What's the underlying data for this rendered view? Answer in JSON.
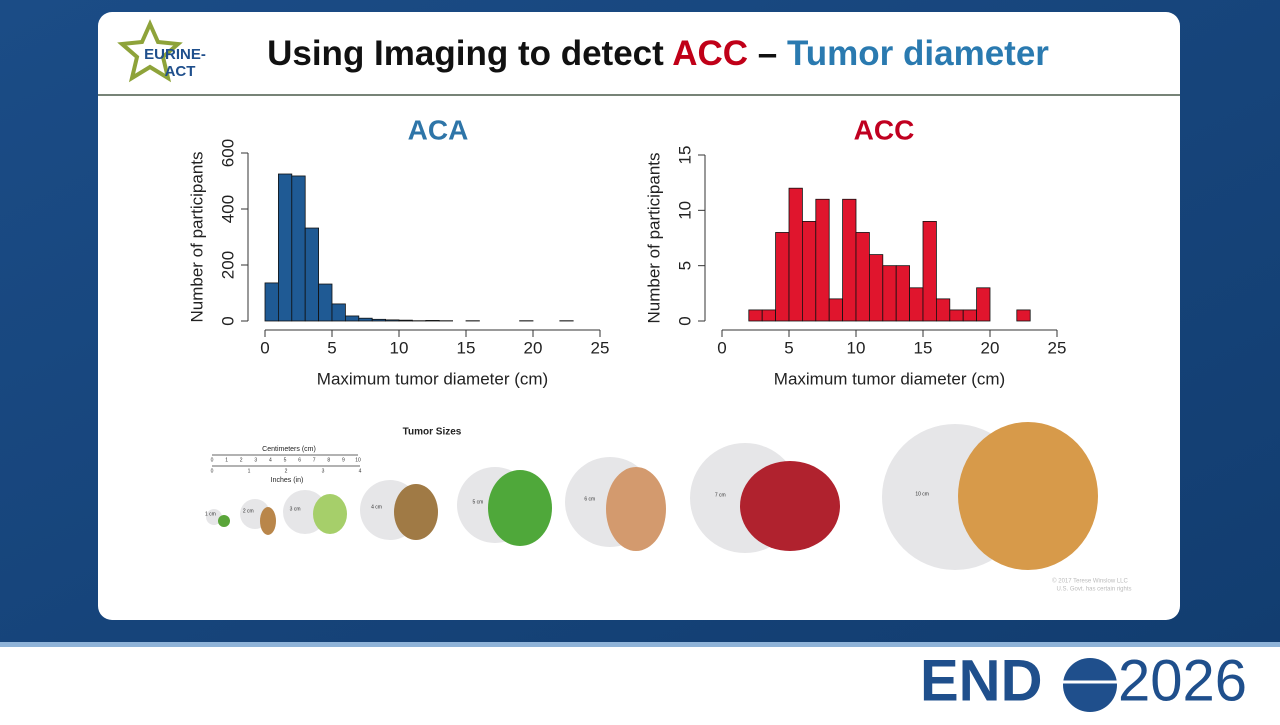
{
  "logo": {
    "line1": "EURINE-",
    "line2": "ACT"
  },
  "title": {
    "prefix": "Using Imaging to detect",
    "acc": "ACC",
    "dash": "–",
    "suffix": "Tumor diameter"
  },
  "chart_data": [
    {
      "type": "histogram",
      "title": "ACA",
      "x_label": "Maximum tumor diameter (cm)",
      "y_label": "Number of participants",
      "color": "#1f5a94",
      "title_color": "#2e75a8",
      "bins": [
        0,
        1,
        2,
        3,
        4,
        5,
        6,
        7,
        8,
        9,
        10,
        11,
        12,
        13,
        14,
        15,
        16,
        17,
        18,
        19,
        20,
        21,
        22,
        23
      ],
      "values": [
        136,
        525,
        518,
        332,
        132,
        61,
        18,
        10,
        6,
        4,
        3,
        1,
        2,
        1,
        0,
        1,
        0,
        0,
        0,
        1,
        0,
        0,
        1
      ],
      "xlim": [
        0,
        25
      ],
      "xticks": [
        0,
        5,
        10,
        15,
        20,
        25
      ],
      "ylim": [
        0,
        600
      ],
      "yticks": [
        0,
        200,
        400,
        600
      ]
    },
    {
      "type": "histogram",
      "title": "ACC",
      "x_label": "Maximum tumor diameter (cm)",
      "y_label": "Number of participants",
      "color": "#e0152d",
      "title_color": "#c00020",
      "bins": [
        2,
        3,
        4,
        5,
        6,
        7,
        8,
        9,
        10,
        11,
        12,
        13,
        14,
        15,
        16,
        17,
        18,
        19,
        20,
        21,
        22,
        23
      ],
      "values": [
        1,
        1,
        8,
        12,
        9,
        11,
        2,
        11,
        8,
        6,
        5,
        5,
        3,
        9,
        2,
        1,
        1,
        3,
        0,
        0,
        1
      ],
      "xlim": [
        0,
        25
      ],
      "xticks": [
        0,
        5,
        10,
        15,
        20,
        25
      ],
      "ylim": [
        0,
        15
      ],
      "yticks": [
        0,
        5,
        10,
        15
      ]
    }
  ],
  "illustration": {
    "title": "Tumor Sizes",
    "cm_label": "Centimeters (cm)",
    "in_label": "Inches (in)",
    "cm_ticks": [
      0,
      1,
      2,
      3,
      4,
      5,
      6,
      7,
      8,
      9,
      10
    ],
    "in_ticks": [
      0,
      1,
      2,
      3,
      4
    ],
    "size_labels": [
      "1 cm",
      "2 cm",
      "3 cm",
      "4 cm",
      "5 cm",
      "6 cm",
      "7 cm",
      "10 cm"
    ],
    "copyright": [
      "© 2017 Terese Winslow LLC",
      "U.S. Govt. has certain rights"
    ]
  },
  "footer": {
    "end": "END",
    "year": "2026"
  }
}
